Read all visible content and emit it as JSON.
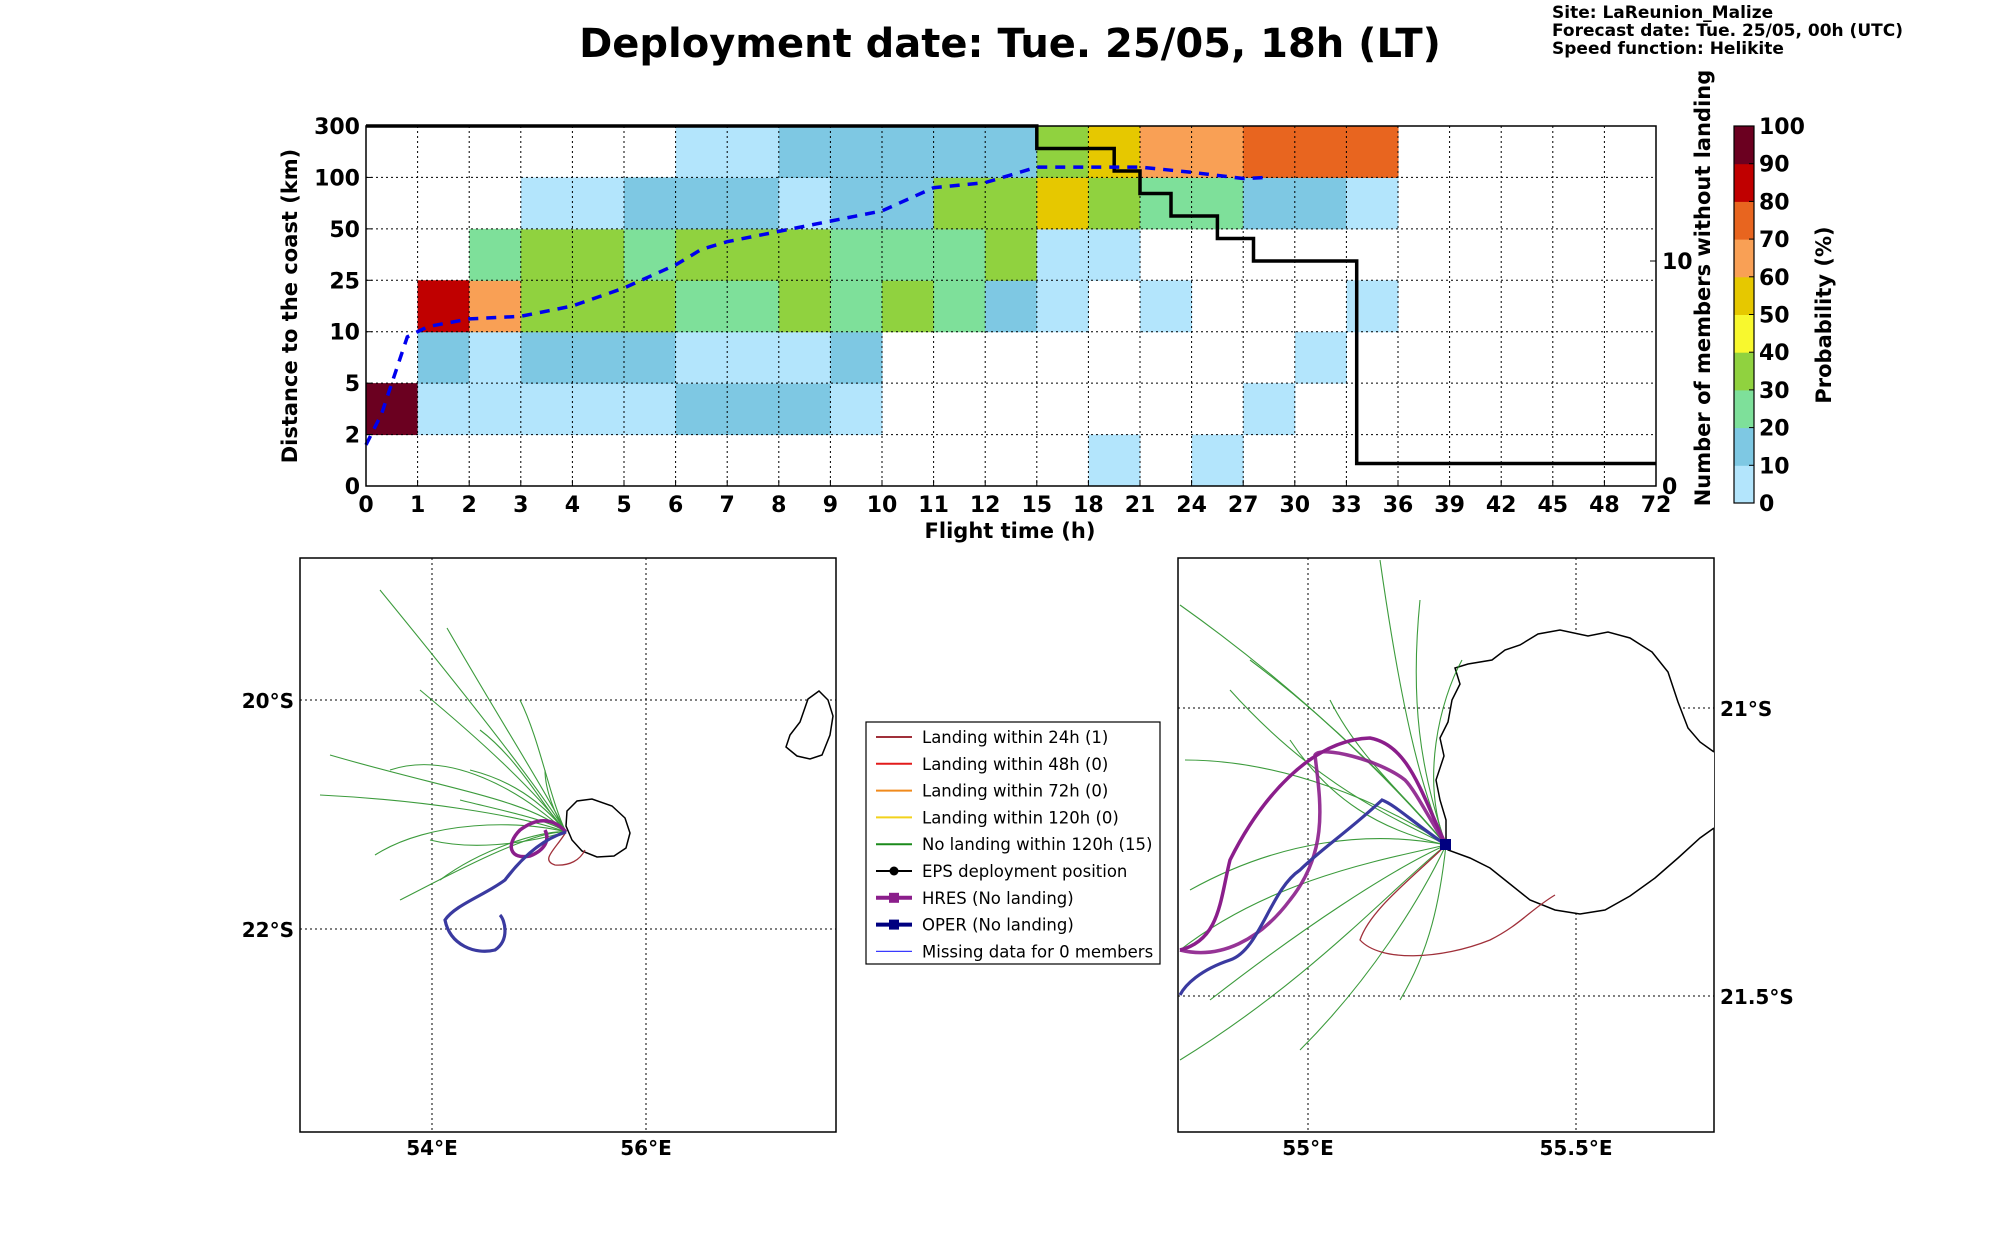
{
  "title": "Deployment date: Tue. 25/05, 18h (LT)",
  "info": {
    "site": "Site: LaReunion_Malize",
    "forecast": "Forecast date: Tue. 25/05, 00h (UTC)",
    "speed": "Speed function: Helikite"
  },
  "chart_data": {
    "type": "heatmap",
    "xlabel": "Flight time (h)",
    "ylabel": "Distance to the coast (km)",
    "ylabel_right": "Number of members without landing",
    "colorbar_label": "Probability (%)",
    "x_tick_labels": [
      "0",
      "1",
      "2",
      "3",
      "4",
      "5",
      "6",
      "7",
      "8",
      "9",
      "10",
      "11",
      "12",
      "15",
      "18",
      "21",
      "24",
      "27",
      "30",
      "33",
      "36",
      "39",
      "42",
      "45",
      "48",
      "72"
    ],
    "y_tick_labels": [
      "0",
      "2",
      "5",
      "10",
      "25",
      "50",
      "100",
      "300"
    ],
    "right_tick_labels": [
      "0",
      "10"
    ],
    "right_ylim": [
      0,
      16
    ],
    "colorbar_tick_labels": [
      "0",
      "10",
      "20",
      "30",
      "40",
      "50",
      "60",
      "70",
      "80",
      "90",
      "100"
    ],
    "colorbar_colors": [
      "#b3e5fc",
      "#7ec8e3",
      "#7ee09a",
      "#90d23f",
      "#f8f82e",
      "#e6c800",
      "#f9a055",
      "#e8651f",
      "#c00000",
      "#6b0020"
    ],
    "cells": [
      {
        "x": 0,
        "y": 1,
        "p": 100
      },
      {
        "x": 1,
        "y": 1,
        "p": 5
      },
      {
        "x": 1,
        "y": 2,
        "p": 10
      },
      {
        "x": 1,
        "y": 3,
        "p": 80
      },
      {
        "x": 2,
        "y": 1,
        "p": 5
      },
      {
        "x": 2,
        "y": 2,
        "p": 5
      },
      {
        "x": 2,
        "y": 3,
        "p": 65
      },
      {
        "x": 2,
        "y": 4,
        "p": 20
      },
      {
        "x": 3,
        "y": 1,
        "p": 5
      },
      {
        "x": 3,
        "y": 2,
        "p": 10
      },
      {
        "x": 3,
        "y": 3,
        "p": 30
      },
      {
        "x": 3,
        "y": 4,
        "p": 30
      },
      {
        "x": 3,
        "y": 5,
        "p": 5
      },
      {
        "x": 4,
        "y": 1,
        "p": 5
      },
      {
        "x": 4,
        "y": 2,
        "p": 10
      },
      {
        "x": 4,
        "y": 3,
        "p": 30
      },
      {
        "x": 4,
        "y": 4,
        "p": 30
      },
      {
        "x": 4,
        "y": 5,
        "p": 5
      },
      {
        "x": 5,
        "y": 1,
        "p": 5
      },
      {
        "x": 5,
        "y": 2,
        "p": 10
      },
      {
        "x": 5,
        "y": 3,
        "p": 30
      },
      {
        "x": 5,
        "y": 4,
        "p": 20
      },
      {
        "x": 5,
        "y": 5,
        "p": 10
      },
      {
        "x": 6,
        "y": 1,
        "p": 10
      },
      {
        "x": 6,
        "y": 2,
        "p": 5
      },
      {
        "x": 6,
        "y": 3,
        "p": 20
      },
      {
        "x": 6,
        "y": 4,
        "p": 30
      },
      {
        "x": 6,
        "y": 5,
        "p": 10
      },
      {
        "x": 6,
        "y": 6,
        "p": 5
      },
      {
        "x": 7,
        "y": 1,
        "p": 10
      },
      {
        "x": 7,
        "y": 2,
        "p": 5
      },
      {
        "x": 7,
        "y": 3,
        "p": 20
      },
      {
        "x": 7,
        "y": 4,
        "p": 30
      },
      {
        "x": 7,
        "y": 5,
        "p": 10
      },
      {
        "x": 7,
        "y": 6,
        "p": 5
      },
      {
        "x": 8,
        "y": 1,
        "p": 10
      },
      {
        "x": 8,
        "y": 2,
        "p": 5
      },
      {
        "x": 8,
        "y": 3,
        "p": 30
      },
      {
        "x": 8,
        "y": 4,
        "p": 30
      },
      {
        "x": 8,
        "y": 5,
        "p": 5
      },
      {
        "x": 8,
        "y": 6,
        "p": 10
      },
      {
        "x": 9,
        "y": 1,
        "p": 5
      },
      {
        "x": 9,
        "y": 2,
        "p": 10
      },
      {
        "x": 9,
        "y": 3,
        "p": 20
      },
      {
        "x": 9,
        "y": 4,
        "p": 20
      },
      {
        "x": 9,
        "y": 5,
        "p": 10
      },
      {
        "x": 9,
        "y": 6,
        "p": 10
      },
      {
        "x": 10,
        "y": 3,
        "p": 30
      },
      {
        "x": 10,
        "y": 4,
        "p": 20
      },
      {
        "x": 10,
        "y": 5,
        "p": 10
      },
      {
        "x": 10,
        "y": 6,
        "p": 10
      },
      {
        "x": 11,
        "y": 3,
        "p": 20
      },
      {
        "x": 11,
        "y": 4,
        "p": 20
      },
      {
        "x": 11,
        "y": 5,
        "p": 30
      },
      {
        "x": 11,
        "y": 6,
        "p": 10
      },
      {
        "x": 12,
        "y": 3,
        "p": 10
      },
      {
        "x": 12,
        "y": 4,
        "p": 30
      },
      {
        "x": 12,
        "y": 5,
        "p": 30
      },
      {
        "x": 12,
        "y": 6,
        "p": 10
      },
      {
        "x": 13,
        "y": 3,
        "p": 5
      },
      {
        "x": 13,
        "y": 4,
        "p": 5
      },
      {
        "x": 13,
        "y": 5,
        "p": 50
      },
      {
        "x": 13,
        "y": 6,
        "p": 30
      },
      {
        "x": 14,
        "y": 0,
        "p": 5
      },
      {
        "x": 14,
        "y": 4,
        "p": 5
      },
      {
        "x": 14,
        "y": 5,
        "p": 30
      },
      {
        "x": 14,
        "y": 6,
        "p": 50
      },
      {
        "x": 15,
        "y": 3,
        "p": 5
      },
      {
        "x": 15,
        "y": 5,
        "p": 20
      },
      {
        "x": 15,
        "y": 6,
        "p": 60
      },
      {
        "x": 16,
        "y": 0,
        "p": 5
      },
      {
        "x": 16,
        "y": 5,
        "p": 20
      },
      {
        "x": 16,
        "y": 6,
        "p": 60
      },
      {
        "x": 17,
        "y": 1,
        "p": 5
      },
      {
        "x": 17,
        "y": 5,
        "p": 10
      },
      {
        "x": 17,
        "y": 6,
        "p": 70
      },
      {
        "x": 18,
        "y": 2,
        "p": 5
      },
      {
        "x": 18,
        "y": 5,
        "p": 10
      },
      {
        "x": 18,
        "y": 6,
        "p": 70
      },
      {
        "x": 19,
        "y": 3,
        "p": 5
      },
      {
        "x": 19,
        "y": 5,
        "p": 5
      },
      {
        "x": 19,
        "y": 6,
        "p": 70
      }
    ],
    "members_without_landing": {
      "steps": [
        [
          0,
          16
        ],
        [
          13,
          16
        ],
        [
          13,
          15
        ],
        [
          14.5,
          15
        ],
        [
          14.5,
          14
        ],
        [
          15,
          14
        ],
        [
          15,
          13
        ],
        [
          15.6,
          13
        ],
        [
          15.6,
          12
        ],
        [
          16.5,
          12
        ],
        [
          16.5,
          11
        ],
        [
          17.2,
          11
        ],
        [
          17.2,
          10
        ],
        [
          19.2,
          10
        ],
        [
          19.2,
          1
        ],
        [
          25,
          1
        ]
      ],
      "style": "solid black"
    },
    "median_distance": {
      "points": [
        [
          0,
          0.8
        ],
        [
          0.3,
          1.4
        ],
        [
          0.8,
          2.9
        ],
        [
          1.2,
          3.1
        ],
        [
          2,
          3.25
        ],
        [
          3,
          3.3
        ],
        [
          4,
          3.5
        ],
        [
          5,
          3.85
        ],
        [
          6,
          4.3
        ],
        [
          6.5,
          4.6
        ],
        [
          7,
          4.75
        ],
        [
          8,
          4.95
        ],
        [
          9,
          5.15
        ],
        [
          10,
          5.35
        ],
        [
          11,
          5.8
        ],
        [
          12,
          5.9
        ],
        [
          12.5,
          6.05
        ],
        [
          13,
          6.2
        ],
        [
          14,
          6.2
        ],
        [
          15,
          6.2
        ],
        [
          16,
          6.1
        ],
        [
          17,
          5.98
        ],
        [
          17.5,
          6.0
        ]
      ],
      "style": "dashed blue"
    }
  },
  "maps": {
    "left": {
      "lat_labels": [
        "20°S",
        "22°S"
      ],
      "lon_labels": [
        "54°E",
        "56°E"
      ]
    },
    "right": {
      "lat_labels": [
        "21°S",
        "21.5°S"
      ],
      "lon_labels": [
        "55°E",
        "55.5°E"
      ]
    }
  },
  "legend": [
    {
      "label": "Landing within 24h (1)",
      "color": "#a0303a",
      "marker": "none",
      "width": 2
    },
    {
      "label": "Landing within 48h (0)",
      "color": "#e21b1b",
      "marker": "none",
      "width": 2
    },
    {
      "label": "Landing within 72h (0)",
      "color": "#f08a1c",
      "marker": "none",
      "width": 2
    },
    {
      "label": "Landing within 120h (0)",
      "color": "#f2d21c",
      "marker": "none",
      "width": 2
    },
    {
      "label": "No landing within 120h (15)",
      "color": "#1b8a1b",
      "marker": "none",
      "width": 2
    },
    {
      "label": "EPS deployment position",
      "color": "#000000",
      "marker": "circle",
      "width": 2
    },
    {
      "label": "HRES (No landing)",
      "color": "#8b1e8b",
      "marker": "square",
      "width": 4
    },
    {
      "label": "OPER (No landing)",
      "color": "#000080",
      "marker": "square",
      "width": 4
    },
    {
      "label": "Missing data for 0 members",
      "color": "#3a3aff",
      "marker": "none",
      "width": 1.2
    }
  ]
}
